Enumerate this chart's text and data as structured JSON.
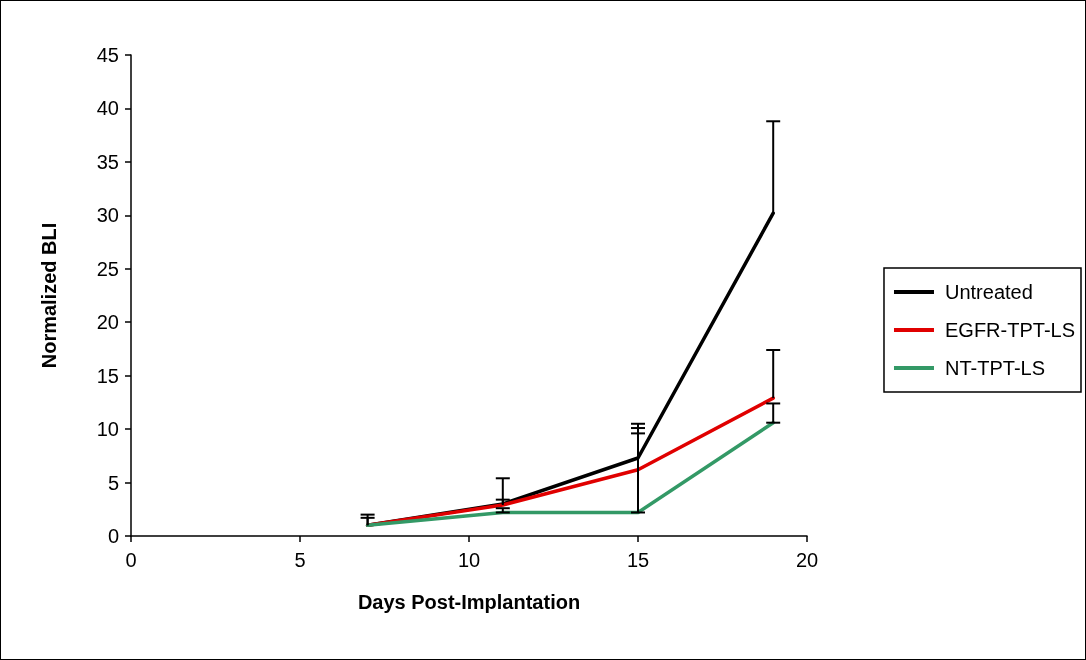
{
  "chart_data": {
    "type": "line",
    "xlabel": "Days Post-Implantation",
    "ylabel": "Normalized BLI",
    "x": [
      7,
      11,
      15,
      19
    ],
    "series": [
      {
        "name": "Untreated",
        "color": "#000000",
        "values": [
          1,
          3.0,
          7.3,
          30.2
        ],
        "errors": [
          [
            1,
            2.0
          ],
          [
            3.0,
            5.4
          ],
          [
            7.3,
            10.5
          ],
          [
            30.2,
            38.8
          ]
        ]
      },
      {
        "name": "EGFR-TPT-LS",
        "color": "#e00000",
        "values": [
          1,
          2.9,
          6.2,
          12.9
        ],
        "errors": [
          [
            1,
            1.7
          ],
          [
            2.9,
            3.4
          ],
          [
            6.2,
            10.1
          ],
          [
            12.9,
            17.4
          ]
        ]
      },
      {
        "name": "NT-TPT-LS",
        "color": "#339966",
        "values": [
          1,
          2.2,
          2.2,
          10.6
        ],
        "errors": [
          null,
          [
            2.2,
            2.6
          ],
          [
            2.2,
            9.6
          ],
          [
            10.6,
            12.4
          ]
        ]
      }
    ],
    "xlim": [
      0,
      20
    ],
    "xticks": [
      0,
      5,
      10,
      15,
      20
    ],
    "ylim": [
      0,
      45
    ],
    "yticks": [
      0,
      5,
      10,
      15,
      20,
      25,
      30,
      35,
      40,
      45
    ],
    "grid": false,
    "legend": "right",
    "marker": "none",
    "line_style": "solid"
  }
}
